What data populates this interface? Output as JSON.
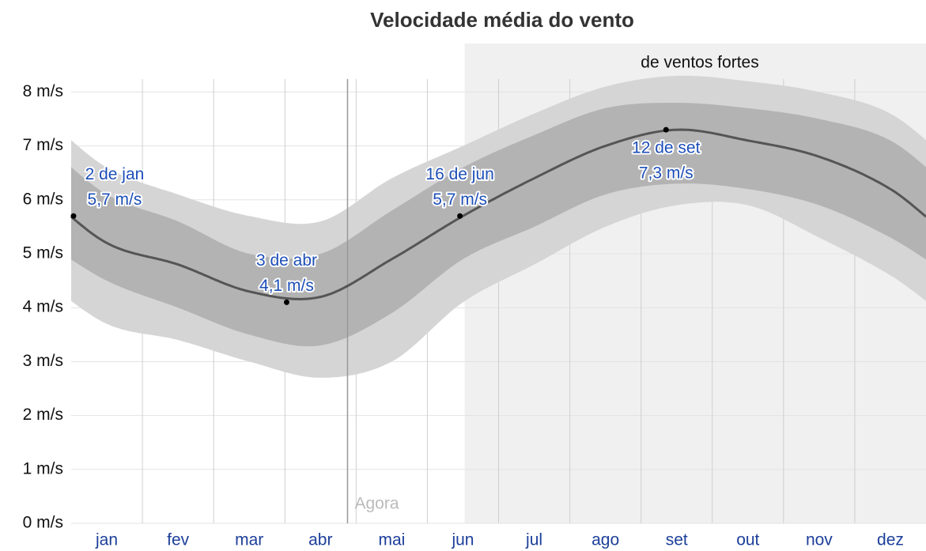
{
  "chart_data": {
    "type": "line",
    "title": "Velocidade média do vento",
    "region_label": "de ventos fortes",
    "now_label": "Agora",
    "categories": [
      "jan",
      "fev",
      "mar",
      "abr",
      "mai",
      "jun",
      "jul",
      "ago",
      "set",
      "out",
      "nov",
      "dez"
    ],
    "values": [
      5.2,
      4.8,
      4.3,
      4.2,
      4.9,
      5.7,
      6.4,
      7.0,
      7.3,
      7.1,
      6.8,
      6.2
    ],
    "color": "#555555",
    "bands": [
      {
        "low": [
          3.7,
          3.4,
          3.0,
          2.7,
          3.0,
          4.1,
          4.8,
          5.5,
          5.9,
          5.9,
          5.3,
          4.6
        ],
        "high": [
          6.6,
          6.1,
          5.7,
          5.6,
          6.4,
          7.0,
          7.6,
          8.1,
          8.3,
          8.2,
          8.0,
          7.6
        ],
        "color": "#d5d5d5"
      },
      {
        "low": [
          4.5,
          4.0,
          3.5,
          3.3,
          3.9,
          4.9,
          5.5,
          6.1,
          6.3,
          6.2,
          5.9,
          5.3
        ],
        "high": [
          6.1,
          5.6,
          5.0,
          5.0,
          5.8,
          6.6,
          7.2,
          7.7,
          7.8,
          7.7,
          7.5,
          7.1
        ],
        "color": "#b3b3b3"
      }
    ],
    "annotations": [
      {
        "date": "2 de jan",
        "value": 5.7,
        "value_label": "5,7 m/s"
      },
      {
        "date": "3 de abr",
        "value": 4.1,
        "value_label": "4,1 m/s"
      },
      {
        "date": "16 de jun",
        "value": 5.7,
        "value_label": "5,7 m/s"
      },
      {
        "date": "12 de set",
        "value": 7.3,
        "value_label": "7,3 m/s"
      }
    ],
    "ylim": [
      0,
      8.9
    ],
    "yticks": [
      {
        "value": 0,
        "label": "0 m/s"
      },
      {
        "value": 1,
        "label": "1 m/s"
      },
      {
        "value": 2,
        "label": "2 m/s"
      },
      {
        "value": 3,
        "label": "3 m/s"
      },
      {
        "value": 4,
        "label": "4 m/s"
      },
      {
        "value": 5,
        "label": "5 m/s"
      },
      {
        "value": 6,
        "label": "6 m/s"
      },
      {
        "value": 7,
        "label": "7 m/s"
      },
      {
        "value": 8,
        "label": "8 m/s"
      }
    ],
    "grid": true
  }
}
